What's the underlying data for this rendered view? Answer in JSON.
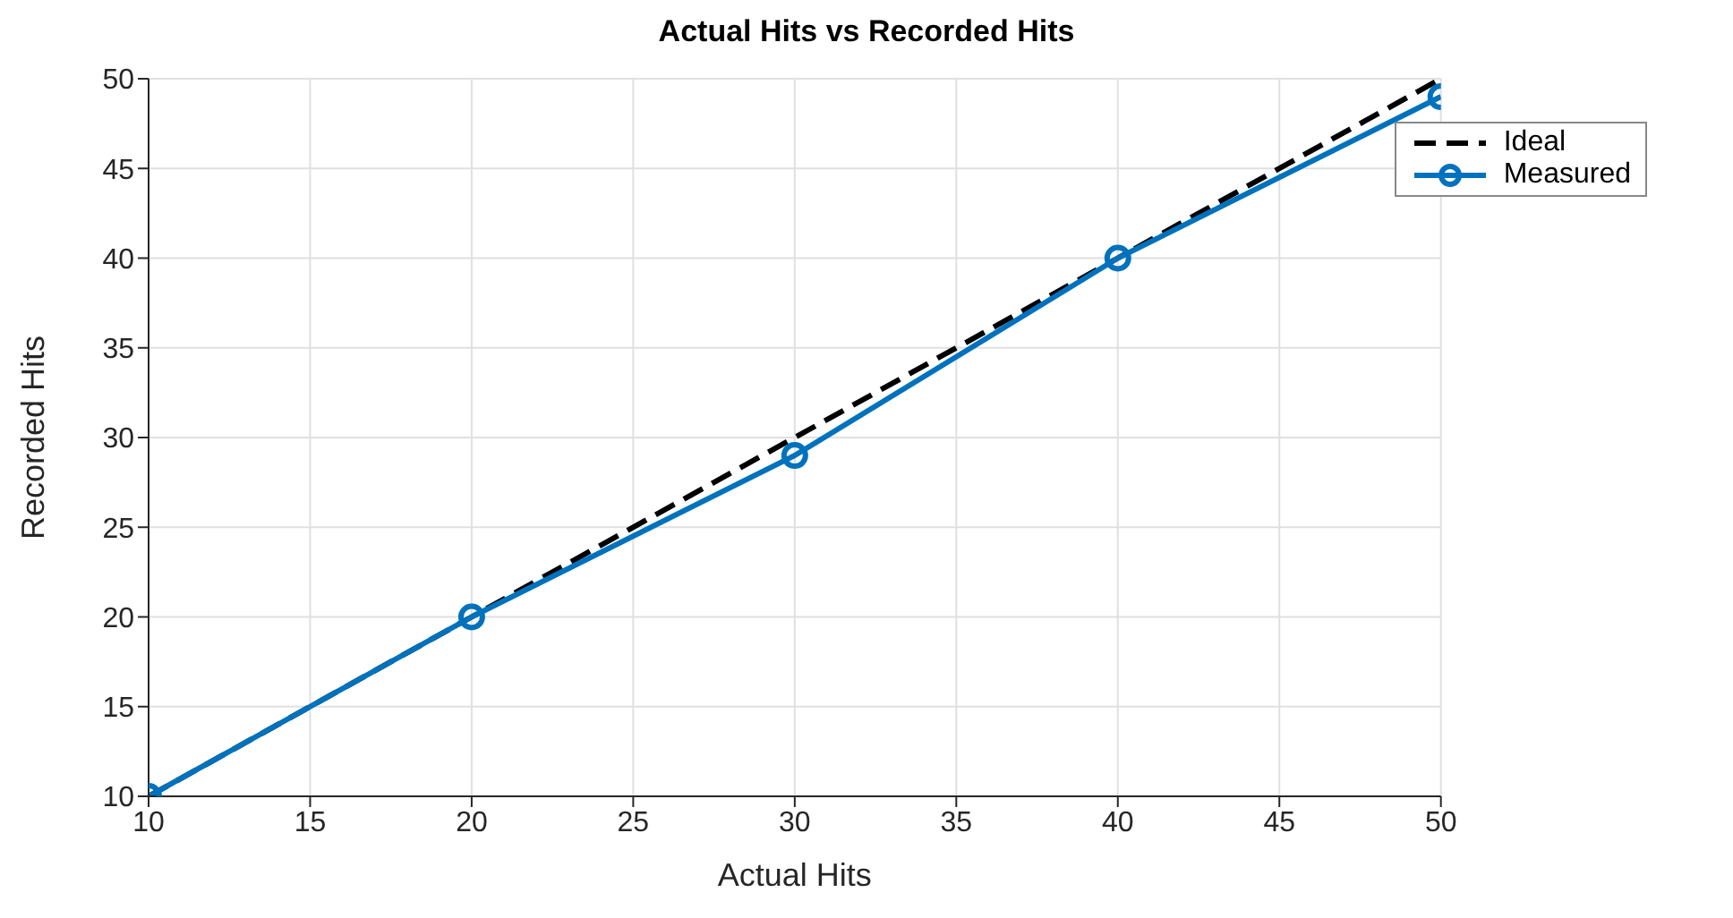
{
  "chart_data": {
    "type": "line",
    "title": "Actual Hits vs Recorded Hits",
    "xlabel": "Actual Hits",
    "ylabel": "Recorded Hits",
    "xlim": [
      10,
      50
    ],
    "xticks": [
      10,
      15,
      20,
      25,
      30,
      35,
      40,
      45,
      50
    ],
    "ylim": [
      10,
      50
    ],
    "yticks": [
      10,
      15,
      20,
      25,
      30,
      35,
      40,
      45,
      50
    ],
    "grid": true,
    "legend": "top right",
    "series": [
      {
        "name": "Ideal",
        "color": "#000000",
        "x": [
          10,
          20,
          30,
          40,
          50
        ],
        "values": [
          10,
          20,
          30,
          40,
          50
        ],
        "line_style": "dashed",
        "marker": "none"
      },
      {
        "name": "Measured",
        "color": "#0072bd",
        "x": [
          10,
          20,
          30,
          40,
          50
        ],
        "values": [
          10,
          20,
          29,
          40,
          49
        ],
        "line_style": "solid",
        "marker": "circle"
      }
    ]
  }
}
